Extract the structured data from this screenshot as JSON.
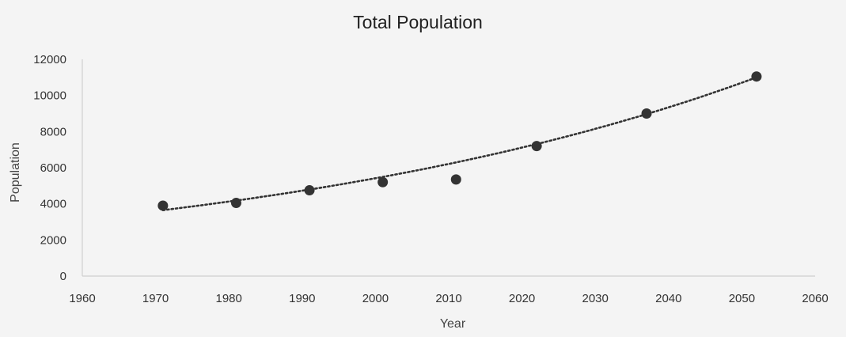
{
  "chart_data": {
    "type": "scatter",
    "title": "Total Population",
    "xlabel": "Year",
    "ylabel": "Population",
    "xlim": [
      1960,
      2060
    ],
    "ylim": [
      0,
      12000
    ],
    "x_ticks": [
      "1960",
      "1970",
      "1980",
      "1990",
      "2000",
      "2010",
      "2020",
      "2030",
      "2040",
      "2050",
      "2060"
    ],
    "y_ticks": [
      "0",
      "2000",
      "4000",
      "6000",
      "8000",
      "10000",
      "12000"
    ],
    "grid": false,
    "legend": "none",
    "trendline": {
      "type": "exponential",
      "style": "dotted",
      "x_range": [
        1971,
        2052
      ],
      "y_range": [
        3650,
        11000
      ]
    },
    "series": [
      {
        "x": [
          1971,
          1981,
          1991,
          2001,
          2011,
          2022,
          2037,
          2052
        ],
        "y": [
          3900,
          4050,
          4750,
          5200,
          5350,
          7200,
          9000,
          11050
        ]
      }
    ],
    "colors": {
      "background": "#f4f4f4",
      "marker": "#333333",
      "trendline": "#333333",
      "axis": "#cfcfcf"
    }
  }
}
